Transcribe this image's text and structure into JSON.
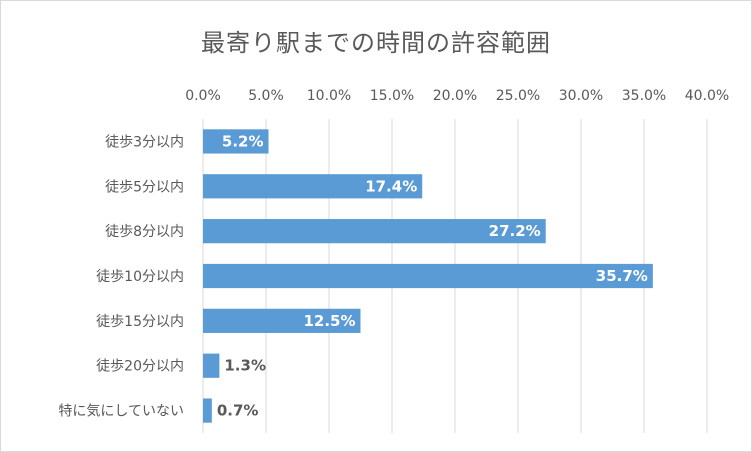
{
  "chart_data": {
    "type": "bar",
    "orientation": "horizontal",
    "title": "最寄り駅までの時間の許容範囲",
    "categories": [
      "徒歩3分以内",
      "徒歩5分以内",
      "徒歩8分以内",
      "徒歩10分以内",
      "徒歩15分以内",
      "徒歩20分以内",
      "特に気にしていない"
    ],
    "values": [
      5.2,
      17.4,
      27.2,
      35.7,
      12.5,
      1.3,
      0.7
    ],
    "value_labels": [
      "5.2%",
      "17.4%",
      "27.2%",
      "35.7%",
      "12.5%",
      "1.3%",
      "0.7%"
    ],
    "ticks": [
      0,
      5,
      10,
      15,
      20,
      25,
      30,
      35,
      40
    ],
    "tick_labels": [
      "0.0%",
      "5.0%",
      "10.0%",
      "15.0%",
      "20.0%",
      "25.0%",
      "30.0%",
      "35.0%",
      "40.0%"
    ],
    "xlim": [
      0,
      40
    ],
    "axis_position": "top",
    "grid": true,
    "legend": "none",
    "bar_color": "#5b9bd5",
    "label_inside_color": "#ffffff",
    "label_outside_color": "#595959"
  }
}
